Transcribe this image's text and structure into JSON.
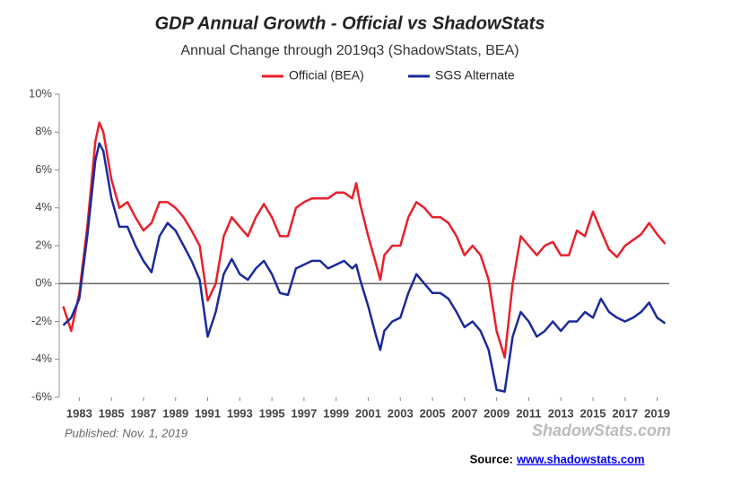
{
  "chart_data": {
    "type": "line",
    "title": "GDP Annual Growth - Official vs ShadowStats",
    "subtitle": "Annual Change through 2019q3  (ShadowStats, BEA)",
    "published": "Published: Nov. 1, 2019",
    "watermark": "ShadowStats.com",
    "source_label": "Source:",
    "source_url": "www.shadowstats.com",
    "x": [
      1982.0,
      1982.5,
      1983.0,
      1983.5,
      1984.0,
      1984.25,
      1984.5,
      1985.0,
      1985.5,
      1986.0,
      1986.5,
      1987.0,
      1987.5,
      1988.0,
      1988.5,
      1989.0,
      1989.5,
      1990.0,
      1990.5,
      1991.0,
      1991.5,
      1992.0,
      1992.5,
      1993.0,
      1993.5,
      1994.0,
      1994.5,
      1995.0,
      1995.5,
      1996.0,
      1996.5,
      1997.0,
      1997.5,
      1998.0,
      1998.5,
      1999.0,
      1999.5,
      2000.0,
      2000.25,
      2000.5,
      2001.0,
      2001.5,
      2001.75,
      2002.0,
      2002.5,
      2003.0,
      2003.5,
      2004.0,
      2004.5,
      2005.0,
      2005.5,
      2006.0,
      2006.5,
      2007.0,
      2007.5,
      2008.0,
      2008.5,
      2009.0,
      2009.5,
      2010.0,
      2010.5,
      2011.0,
      2011.5,
      2012.0,
      2012.5,
      2013.0,
      2013.5,
      2014.0,
      2014.5,
      2015.0,
      2015.5,
      2016.0,
      2016.5,
      2017.0,
      2017.5,
      2018.0,
      2018.5,
      2019.0,
      2019.5
    ],
    "series": [
      {
        "name": "Official (BEA)",
        "color": "#e8202a",
        "values": [
          -1.2,
          -2.5,
          -0.5,
          3.0,
          7.5,
          8.5,
          8.0,
          5.5,
          4.0,
          4.3,
          3.5,
          2.8,
          3.2,
          4.3,
          4.3,
          4.0,
          3.5,
          2.8,
          2.0,
          -0.9,
          0.0,
          2.5,
          3.5,
          3.0,
          2.5,
          3.5,
          4.2,
          3.5,
          2.5,
          2.5,
          4.0,
          4.3,
          4.5,
          4.5,
          4.5,
          4.8,
          4.8,
          4.5,
          5.3,
          4.2,
          2.5,
          1.0,
          0.2,
          1.5,
          2.0,
          2.0,
          3.5,
          4.3,
          4.0,
          3.5,
          3.5,
          3.2,
          2.5,
          1.5,
          2.0,
          1.5,
          0.2,
          -2.5,
          -3.9,
          0.0,
          2.5,
          2.0,
          1.5,
          2.0,
          2.2,
          1.5,
          1.5,
          2.8,
          2.5,
          3.8,
          2.8,
          1.8,
          1.4,
          2.0,
          2.3,
          2.6,
          3.2,
          2.6,
          2.1
        ]
      },
      {
        "name": "SGS Alternate",
        "color": "#1a2a9c",
        "values": [
          -2.2,
          -1.8,
          -0.8,
          2.5,
          6.5,
          7.4,
          7.0,
          4.5,
          3.0,
          3.0,
          2.0,
          1.2,
          0.6,
          2.5,
          3.2,
          2.8,
          2.0,
          1.2,
          0.2,
          -2.8,
          -1.5,
          0.5,
          1.3,
          0.5,
          0.2,
          0.8,
          1.2,
          0.5,
          -0.5,
          -0.6,
          0.8,
          1.0,
          1.2,
          1.2,
          0.8,
          1.0,
          1.2,
          0.8,
          1.0,
          0.2,
          -1.2,
          -2.8,
          -3.5,
          -2.5,
          -2.0,
          -1.8,
          -0.5,
          0.5,
          0.0,
          -0.5,
          -0.5,
          -0.8,
          -1.5,
          -2.3,
          -2.0,
          -2.5,
          -3.5,
          -5.6,
          -5.7,
          -2.8,
          -1.5,
          -2.0,
          -2.8,
          -2.5,
          -2.0,
          -2.5,
          -2.0,
          -2.0,
          -1.5,
          -1.8,
          -0.8,
          -1.5,
          -1.8,
          -2.0,
          -1.8,
          -1.5,
          -1.0,
          -1.8,
          -2.1
        ]
      }
    ],
    "xlim": [
      1981.75,
      2019.75
    ],
    "xticks": [
      1983,
      1985,
      1987,
      1989,
      1991,
      1993,
      1995,
      1997,
      1999,
      2001,
      2003,
      2005,
      2007,
      2009,
      2011,
      2013,
      2015,
      2017,
      2019
    ],
    "ylim": [
      -6,
      10
    ],
    "yticks": [
      {
        "value": -6,
        "label": "-6%"
      },
      {
        "value": -4,
        "label": "-4%"
      },
      {
        "value": -2,
        "label": "-2%"
      },
      {
        "value": 0,
        "label": "0%"
      },
      {
        "value": 2,
        "label": "2%"
      },
      {
        "value": 4,
        "label": "4%"
      },
      {
        "value": 6,
        "label": "6%"
      },
      {
        "value": 8,
        "label": "8%"
      },
      {
        "value": 10,
        "label": "10%"
      }
    ],
    "legend": "top"
  }
}
